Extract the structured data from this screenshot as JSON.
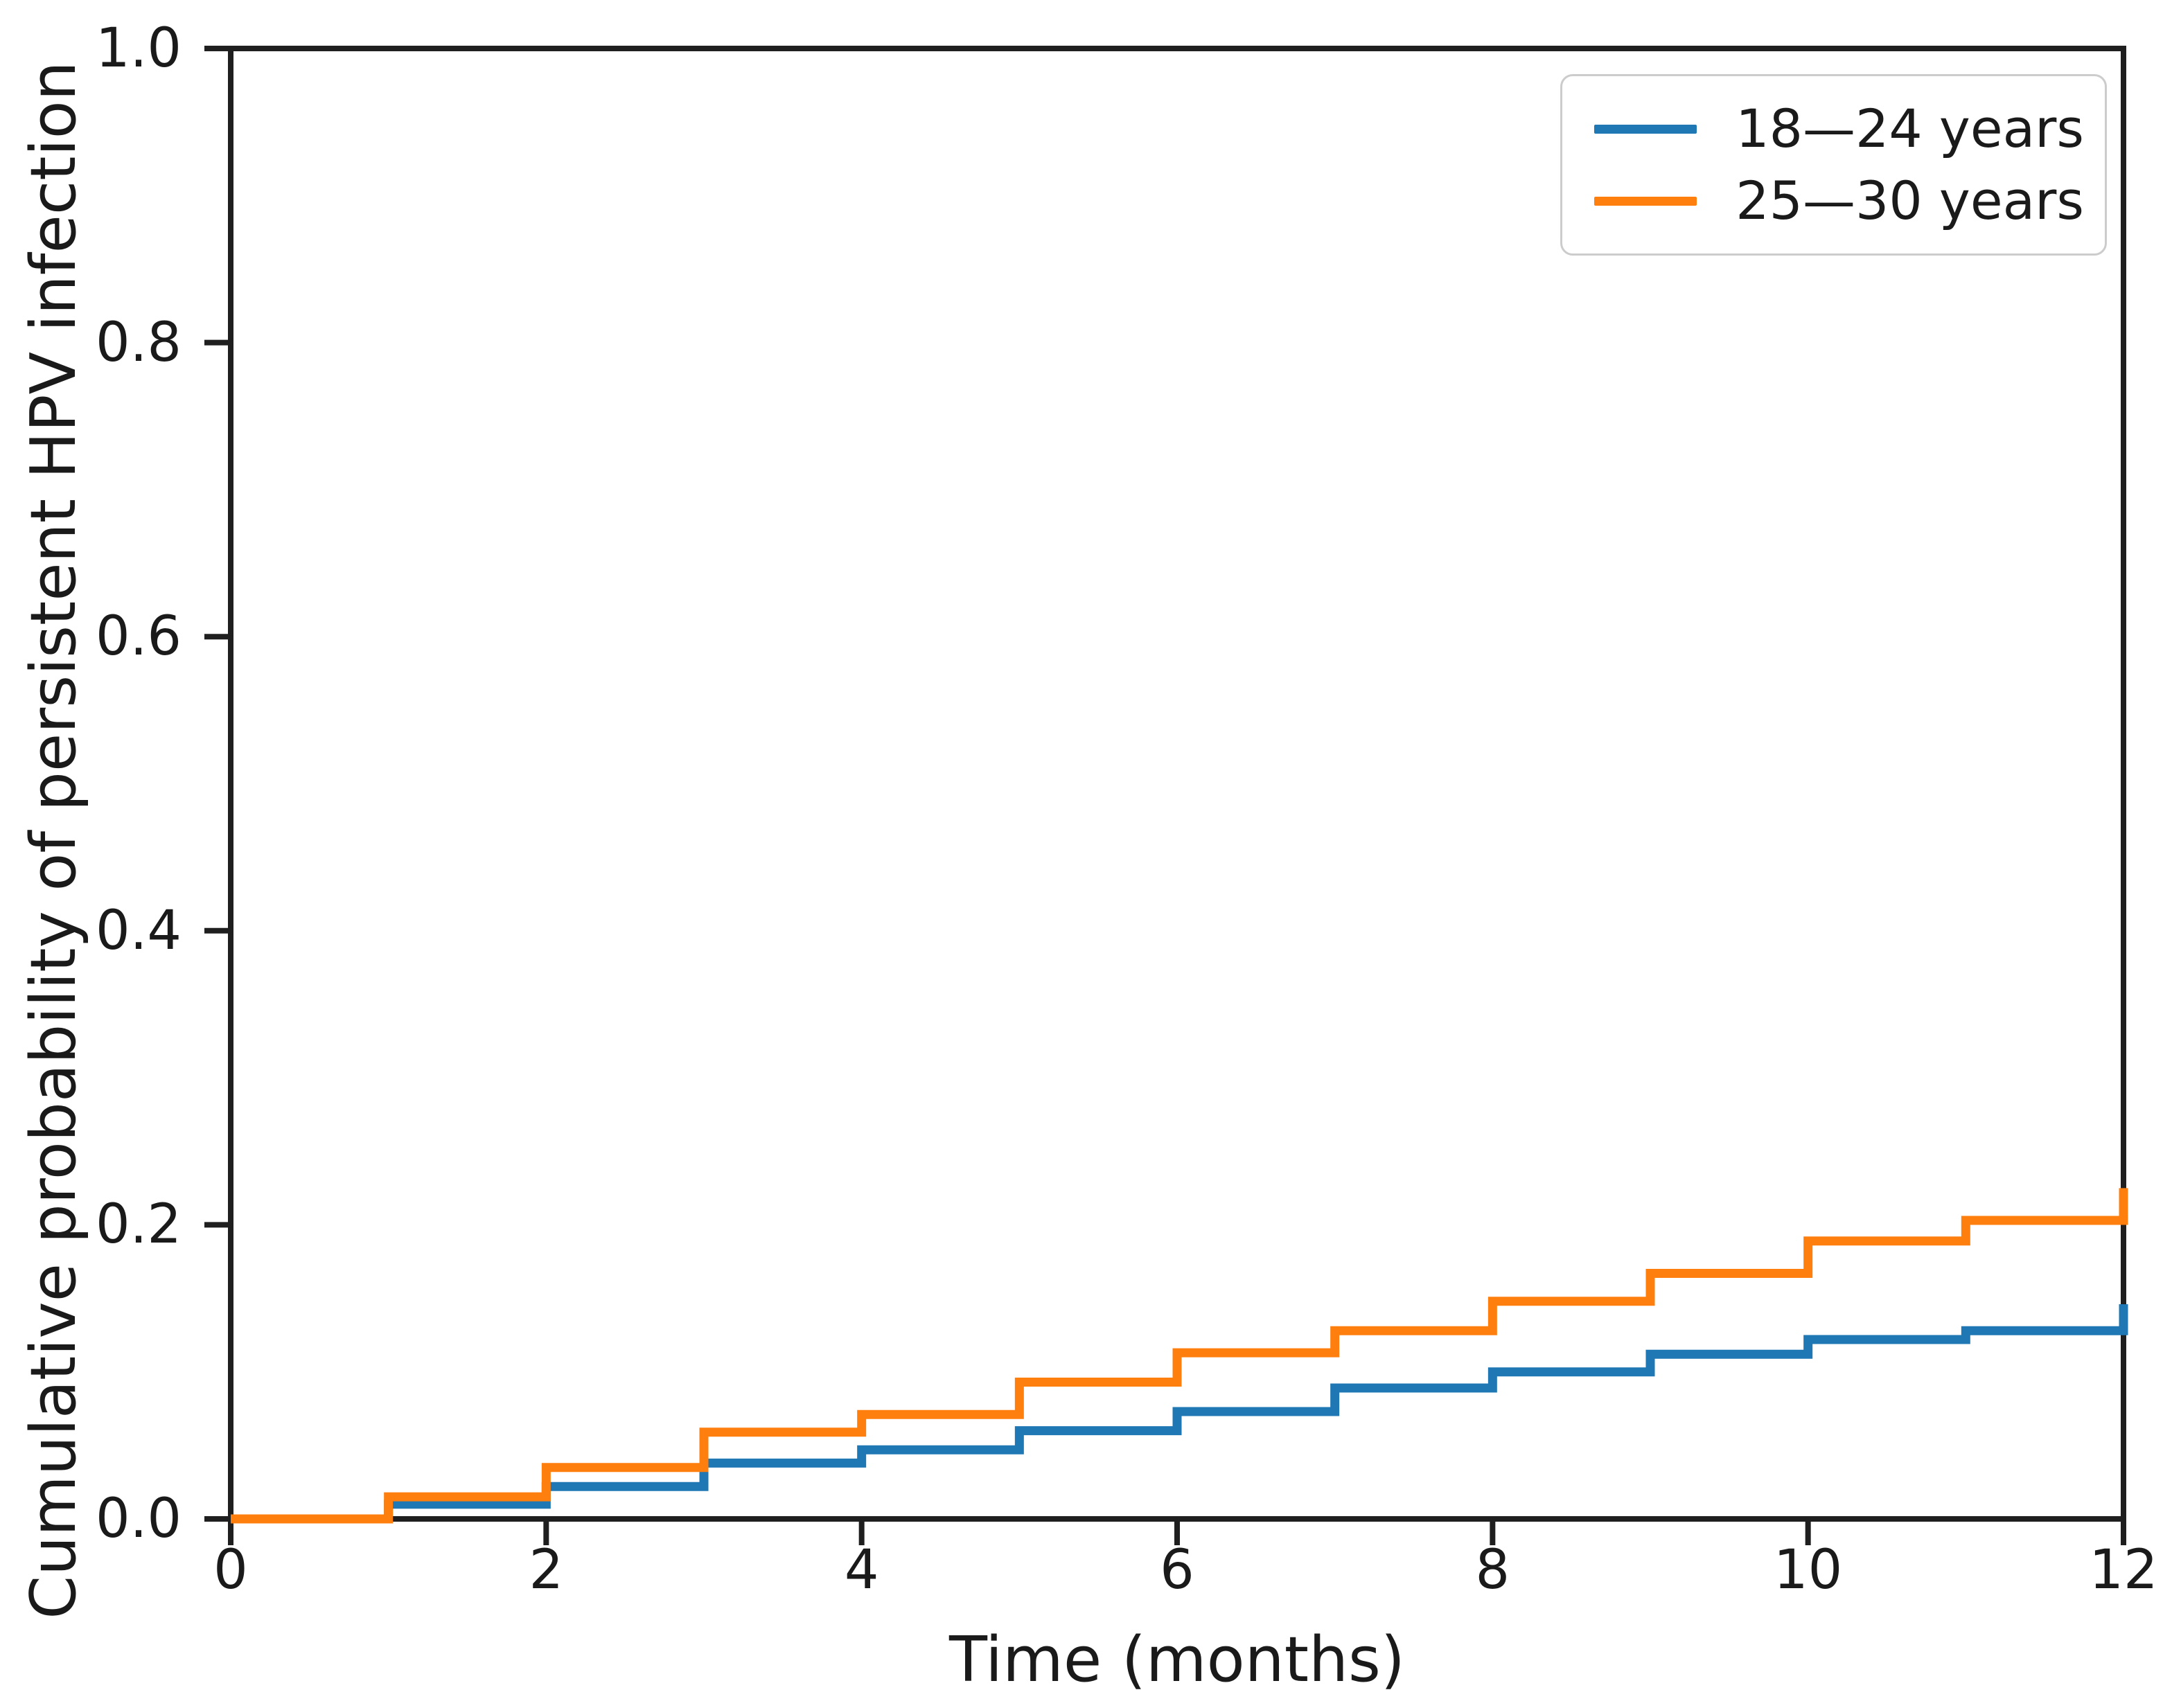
{
  "figure": {
    "background": "#ffffff",
    "text_color": "#1a1a1a",
    "spine_color": "#1f1f1f"
  },
  "chart_data": {
    "type": "line",
    "subtype": "step-post",
    "title": "",
    "xlabel": "Time (months)",
    "ylabel": "Cumulative probability of persistent HPV infection",
    "xlim": [
      0,
      12
    ],
    "ylim": [
      0.0,
      1.0
    ],
    "x_ticks": [
      "0",
      "2",
      "4",
      "6",
      "8",
      "10",
      "12"
    ],
    "x_tick_values": [
      0,
      2,
      4,
      6,
      8,
      10,
      12
    ],
    "y_ticks": [
      "0.0",
      "0.2",
      "0.4",
      "0.6",
      "0.8",
      "1.0"
    ],
    "y_tick_values": [
      0.0,
      0.2,
      0.4,
      0.6,
      0.8,
      1.0
    ],
    "grid": false,
    "legend_position": "upper right",
    "x": [
      0,
      1,
      2,
      3,
      4,
      5,
      6,
      7,
      8,
      9,
      10,
      11,
      12
    ],
    "series": [
      {
        "name": "18—24 years",
        "color": "#1f77b4",
        "values": [
          0.0,
          0.01,
          0.022,
          0.038,
          0.047,
          0.06,
          0.073,
          0.089,
          0.1,
          0.112,
          0.122,
          0.128,
          0.146
        ]
      },
      {
        "name": "25—30 years",
        "color": "#ff7f0e",
        "values": [
          0.0,
          0.015,
          0.035,
          0.059,
          0.071,
          0.093,
          0.113,
          0.128,
          0.148,
          0.167,
          0.189,
          0.203,
          0.225
        ]
      }
    ]
  }
}
